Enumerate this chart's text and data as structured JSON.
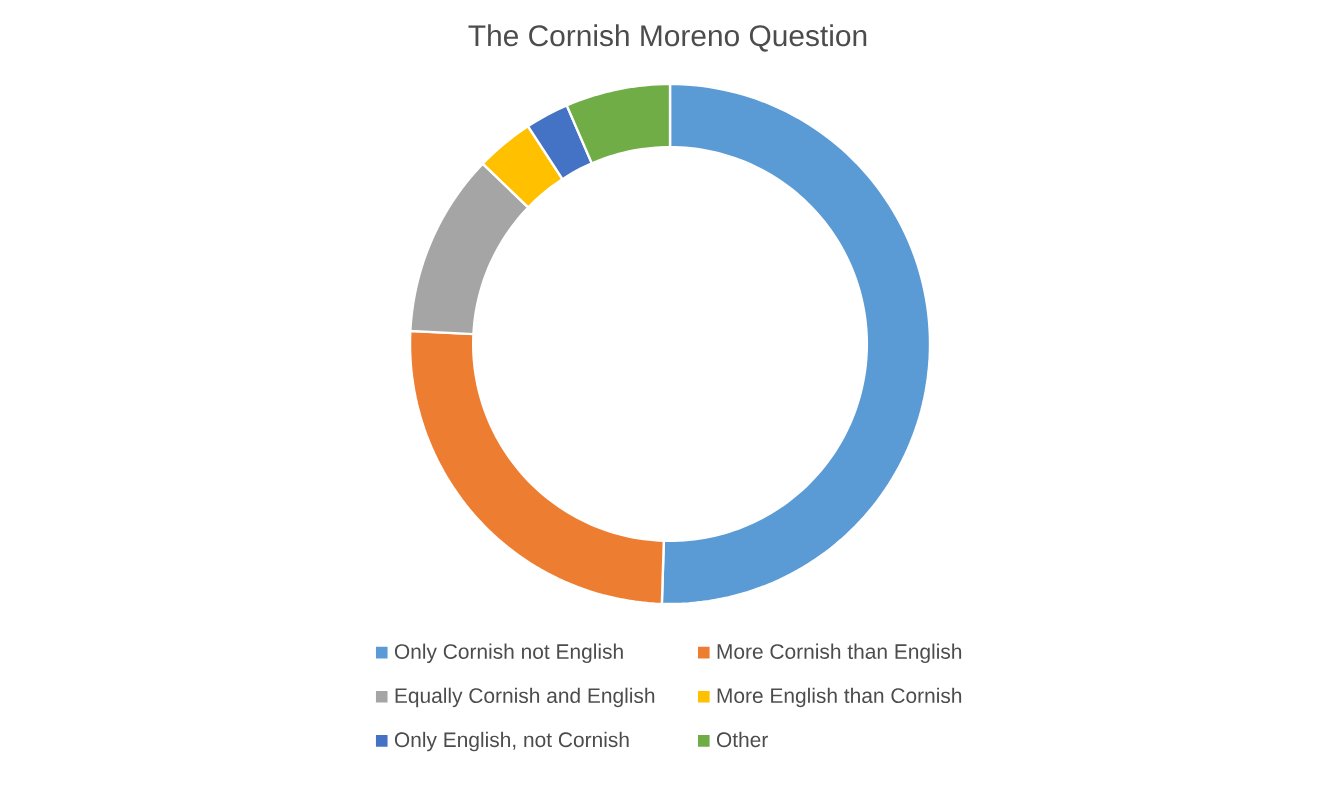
{
  "chart_data": {
    "type": "donut",
    "title": "The Cornish Moreno Question",
    "categories": [
      "Only Cornish not English",
      "More Cornish than English",
      "Equally Cornish and English",
      "More English than Cornish",
      "Only English, not Cornish",
      "Other"
    ],
    "values": [
      50.5,
      25.3,
      11.4,
      3.6,
      2.7,
      6.5
    ],
    "colors": [
      "#5b9bd5",
      "#ed7d31",
      "#a5a5a5",
      "#ffc000",
      "#4472c4",
      "#70ad47"
    ],
    "legend": "bottom"
  }
}
